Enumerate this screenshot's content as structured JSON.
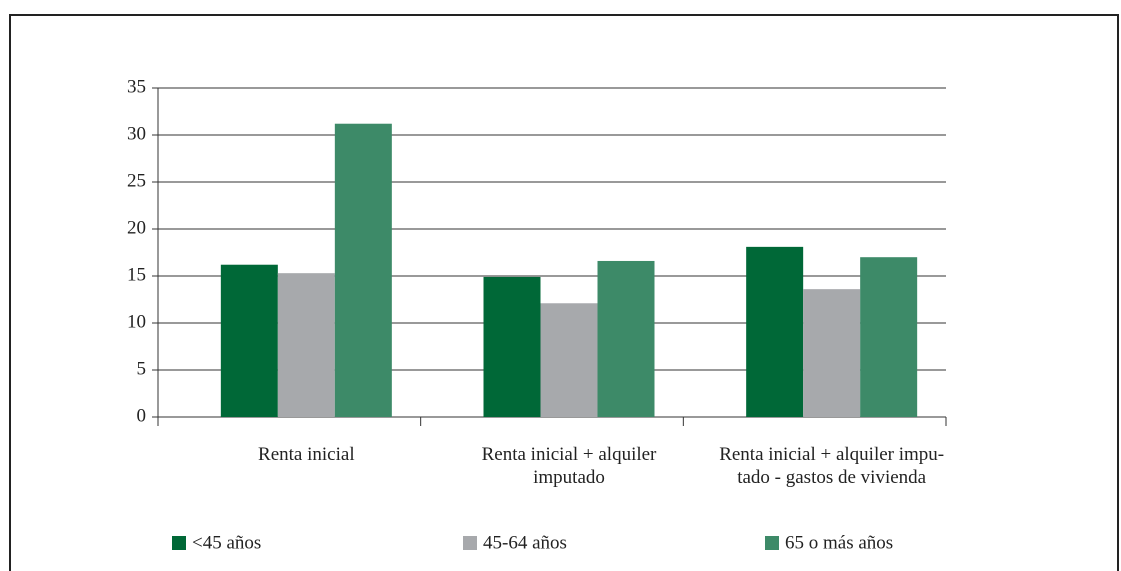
{
  "chart_data": {
    "type": "bar",
    "categories": [
      [
        "Renta inicial"
      ],
      [
        "Renta inicial + alquiler",
        "imputado"
      ],
      [
        "Renta inicial + alquiler impu-",
        "tado - gastos de vivienda"
      ]
    ],
    "series": [
      {
        "name": "<45 años",
        "color": "#006837",
        "values": [
          16.2,
          14.9,
          18.1
        ]
      },
      {
        "name": "45-64 años",
        "color": "#a7a9ac",
        "values": [
          15.3,
          12.1,
          13.6
        ]
      },
      {
        "name": "65 o más años",
        "color": "#3d8a68",
        "values": [
          31.2,
          16.6,
          17.0
        ]
      }
    ],
    "ylim": [
      0,
      35
    ],
    "yticks": [
      0,
      5,
      10,
      15,
      20,
      25,
      30,
      35
    ],
    "grid": true
  }
}
